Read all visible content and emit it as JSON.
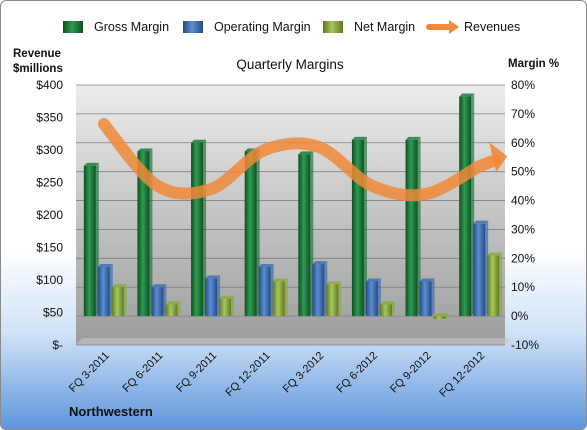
{
  "chart_data": {
    "type": "bar",
    "title": "Quarterly Margins",
    "company": "Northwestern",
    "categories": [
      "FQ 3-2011",
      "FQ 6-2011",
      "FQ 9-2011",
      "FQ 12-2011",
      "FQ 3-2012",
      "FQ 6-2012",
      "FQ 9-2012",
      "FQ 12-2012"
    ],
    "ylabel_left": "Revenue $millions",
    "ylabel_right": "Margin %",
    "ylim_left": [
      0,
      400
    ],
    "ylim_right": [
      -10,
      80
    ],
    "left_ticks": [
      0,
      50,
      100,
      150,
      200,
      250,
      300,
      350,
      400
    ],
    "left_tick_labels": [
      "$-",
      "$50",
      "$100",
      "$150",
      "$200",
      "$250",
      "$300",
      "$350",
      "$400"
    ],
    "right_ticks": [
      -10,
      0,
      10,
      20,
      30,
      40,
      50,
      60,
      70,
      80
    ],
    "right_tick_labels": [
      "-10%",
      "0%",
      "10%",
      "20%",
      "30%",
      "40%",
      "50%",
      "60%",
      "70%",
      "80%"
    ],
    "grid": true,
    "legend_position": "top",
    "series": [
      {
        "name": "Gross Margin",
        "axis": "right",
        "color": "#1f7a3c",
        "values": [
          52,
          57,
          60,
          57,
          56,
          61,
          61,
          76
        ]
      },
      {
        "name": "Operating Margin",
        "axis": "right",
        "color": "#3f6fb5",
        "values": [
          17,
          10,
          13,
          17,
          18,
          12,
          12,
          32
        ]
      },
      {
        "name": "Net Margin",
        "axis": "right",
        "color": "#8aab3e",
        "values": [
          10,
          4,
          6,
          12,
          11,
          4,
          -1,
          21
        ]
      },
      {
        "name": "Revenues",
        "axis": "left",
        "type": "line",
        "color": "#ef8a3a",
        "values": [
          340,
          245,
          240,
          300,
          305,
          245,
          232,
          275
        ]
      }
    ]
  }
}
